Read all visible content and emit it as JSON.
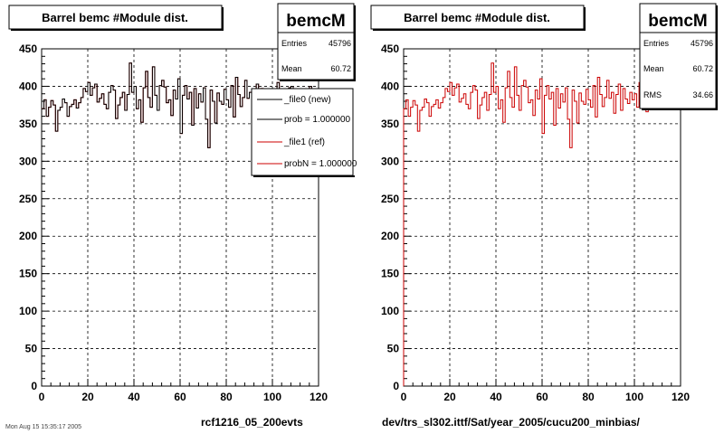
{
  "panels": [
    {
      "title": "Barrel bemc #Module dist.",
      "footer_label": "rcf1216_05_200evts",
      "stats": {
        "name": "bemcM",
        "rows": [
          {
            "label": "Entries",
            "value": "45796"
          },
          {
            "label": "Mean",
            "value": "60.72"
          }
        ]
      },
      "legend": [
        {
          "label": "_file0 (new)",
          "color": "#000000"
        },
        {
          "label": "prob = 1.000000",
          "color": "#000000"
        },
        {
          "label": "_file1 (ref)",
          "color": "#cc0000"
        },
        {
          "label": "probN = 1.000000",
          "color": "#cc0000"
        }
      ]
    },
    {
      "title": "Barrel bemc #Module dist.",
      "footer_label": "dev/trs_sl302.ittf/Sat/year_2005/cucu200_minbias/",
      "stats": {
        "name": "bemcM",
        "rows": [
          {
            "label": "Entries",
            "value": "45796"
          },
          {
            "label": "Mean",
            "value": "60.72"
          },
          {
            "label": "RMS",
            "value": "34.66"
          }
        ]
      },
      "legend": []
    }
  ],
  "bottom_left_text": "Mon Aug 15 15:35:17 2005",
  "chart_data": [
    {
      "type": "step",
      "title": "Barrel bemc #Module dist.",
      "xlim": [
        0,
        120
      ],
      "ylim": [
        0,
        450
      ],
      "x_ticks": [
        0,
        20,
        40,
        60,
        80,
        100,
        120
      ],
      "y_ticks": [
        0,
        50,
        100,
        150,
        200,
        250,
        300,
        350,
        400,
        450
      ],
      "grid": true,
      "bin_width": 1,
      "series": [
        {
          "name": "_file0 (new)",
          "color": "#000000",
          "x_start": 1,
          "values": [
            370,
            382,
            360,
            372,
            381,
            375,
            340,
            368,
            372,
            383,
            378,
            360,
            373,
            376,
            382,
            371,
            378,
            385,
            397,
            393,
            405,
            388,
            398,
            403,
            379,
            384,
            390,
            376,
            370,
            392,
            401,
            395,
            357,
            375,
            385,
            392,
            368,
            389,
            431,
            392,
            400,
            370,
            382,
            352,
            398,
            420,
            385,
            372,
            426,
            388,
            368,
            401,
            408,
            399,
            378,
            382,
            361,
            395,
            383,
            410,
            337,
            388,
            401,
            383,
            392,
            348,
            397,
            371,
            390,
            379,
            398,
            356,
            318,
            395,
            380,
            351,
            391,
            380,
            376,
            396,
            382,
            372,
            401,
            359,
            412,
            389,
            373,
            385,
            408,
            384,
            392,
            364,
            389,
            403,
            368,
            397,
            383,
            377,
            392,
            382,
            390,
            372,
            405,
            395,
            378,
            366,
            385,
            398,
            400,
            392,
            379,
            388,
            374,
            382,
            390,
            378,
            400,
            385,
            391,
            386
          ]
        },
        {
          "name": "_file1 (ref)",
          "color": "#cc0000",
          "x_start": 1,
          "values": [
            370,
            382,
            360,
            372,
            381,
            375,
            340,
            368,
            372,
            383,
            378,
            360,
            373,
            376,
            382,
            371,
            378,
            385,
            397,
            393,
            405,
            388,
            398,
            403,
            379,
            384,
            390,
            376,
            370,
            392,
            401,
            395,
            357,
            375,
            385,
            392,
            368,
            389,
            431,
            392,
            400,
            370,
            382,
            352,
            398,
            420,
            385,
            372,
            426,
            388,
            368,
            401,
            408,
            399,
            378,
            382,
            361,
            395,
            383,
            410,
            337,
            388,
            401,
            383,
            392,
            348,
            397,
            371,
            390,
            379,
            398,
            356,
            318,
            395,
            380,
            351,
            391,
            380,
            376,
            396,
            382,
            372,
            401,
            359,
            412,
            389,
            373,
            385,
            408,
            384,
            392,
            364,
            389,
            403,
            368,
            397,
            383,
            377,
            392,
            382,
            390,
            372,
            405,
            395,
            378,
            366,
            385,
            398,
            400,
            392,
            379,
            388,
            374,
            382,
            390,
            378,
            400,
            385,
            391,
            386
          ]
        }
      ]
    },
    {
      "type": "step",
      "title": "Barrel bemc #Module dist.",
      "xlim": [
        0,
        120
      ],
      "ylim": [
        0,
        450
      ],
      "x_ticks": [
        0,
        20,
        40,
        60,
        80,
        100,
        120
      ],
      "y_ticks": [
        0,
        50,
        100,
        150,
        200,
        250,
        300,
        350,
        400,
        450
      ],
      "grid": true,
      "bin_width": 1,
      "series": [
        {
          "name": "",
          "color": "#cc0000",
          "x_start": 1,
          "values": [
            370,
            382,
            360,
            372,
            381,
            375,
            340,
            368,
            372,
            383,
            378,
            360,
            373,
            376,
            382,
            371,
            378,
            385,
            397,
            393,
            405,
            388,
            398,
            403,
            379,
            384,
            390,
            376,
            370,
            392,
            401,
            395,
            357,
            375,
            385,
            392,
            368,
            389,
            431,
            392,
            400,
            370,
            382,
            352,
            398,
            420,
            385,
            372,
            426,
            388,
            368,
            401,
            408,
            399,
            378,
            382,
            361,
            395,
            383,
            410,
            337,
            388,
            401,
            383,
            392,
            348,
            397,
            371,
            390,
            379,
            398,
            356,
            318,
            395,
            380,
            351,
            391,
            380,
            376,
            396,
            382,
            372,
            401,
            359,
            412,
            389,
            373,
            385,
            408,
            384,
            392,
            364,
            389,
            403,
            368,
            397,
            383,
            377,
            392,
            382,
            390,
            372,
            405,
            395,
            378,
            366,
            385,
            398,
            400,
            392,
            379,
            388,
            374,
            382,
            390,
            378,
            400,
            385,
            391,
            386
          ]
        }
      ]
    }
  ]
}
